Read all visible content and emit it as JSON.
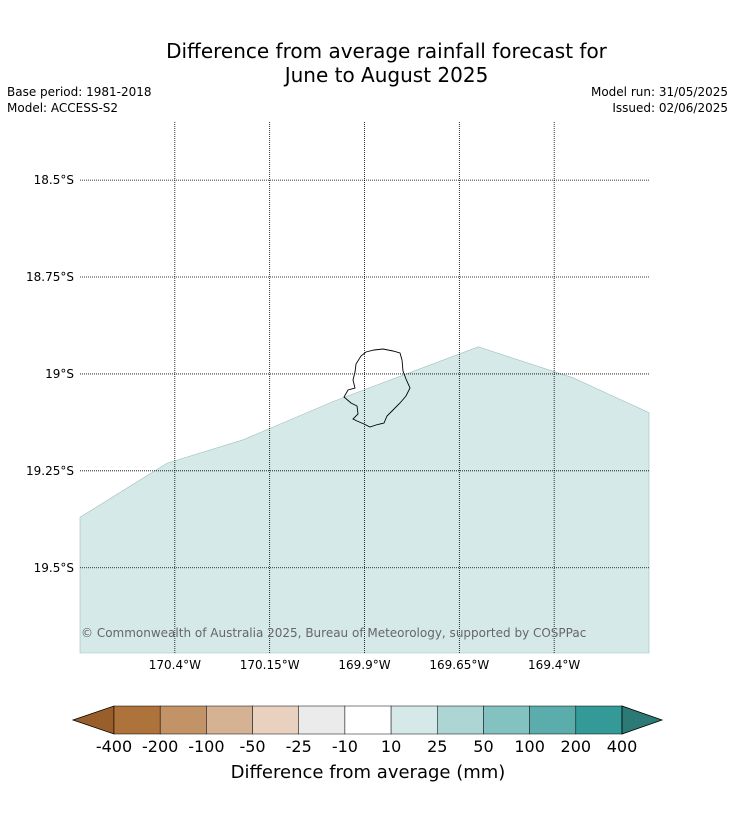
{
  "title_line1": "Difference from average rainfall forecast for",
  "title_line2": "June to August 2025",
  "meta_left": [
    "Base period: 1981-2018",
    "Model: ACCESS-S2"
  ],
  "meta_right": [
    "Model run: 31/05/2025",
    "Issued: 02/06/2025"
  ],
  "map": {
    "lat_ticks": [
      {
        "value": -18.5,
        "label": "18.5°S"
      },
      {
        "value": -18.75,
        "label": "18.75°S"
      },
      {
        "value": -19.0,
        "label": "19°S"
      },
      {
        "value": -19.25,
        "label": "19.25°S"
      },
      {
        "value": -19.5,
        "label": "19.5°S"
      }
    ],
    "lon_ticks": [
      {
        "value": -170.4,
        "label": "170.4°W"
      },
      {
        "value": -170.15,
        "label": "170.15°W"
      },
      {
        "value": -169.9,
        "label": "169.9°W"
      },
      {
        "value": -169.65,
        "label": "169.65°W"
      },
      {
        "value": -169.4,
        "label": "169.4°W"
      }
    ],
    "extent": {
      "lon_min": -170.65,
      "lon_max": -169.15,
      "lat_min": -19.72,
      "lat_max": -18.35
    },
    "region_fill_color": "#d5eae8",
    "region_category": "10 to 25 mm",
    "region_polygon_lonlat": [
      [
        -170.65,
        -19.37
      ],
      [
        -170.42,
        -19.23
      ],
      [
        -170.22,
        -19.17
      ],
      [
        -169.98,
        -19.07
      ],
      [
        -169.6,
        -18.93
      ],
      [
        -169.35,
        -19.01
      ],
      [
        -169.15,
        -19.1
      ],
      [
        -169.15,
        -19.72
      ],
      [
        -170.65,
        -19.72
      ]
    ],
    "coastline": "Niue",
    "copyright": "© Commonwealth of Australia 2025, Bureau of Meteorology, supported by COSPPac"
  },
  "colorbar": {
    "title": "Difference from average (mm)",
    "tick_labels": [
      "-400",
      "-200",
      "-100",
      "-50",
      "-25",
      "-10",
      "10",
      "25",
      "50",
      "100",
      "200",
      "400"
    ],
    "under_color": "#985f2a",
    "over_color": "#2b7a76",
    "colors": [
      "#ad733b",
      "#c29366",
      "#d5b293",
      "#e8d1bf",
      "#ebebeb",
      "#ffffff",
      "#d5eae8",
      "#acd5d4",
      "#83c2c1",
      "#5aadab",
      "#339a97"
    ]
  }
}
